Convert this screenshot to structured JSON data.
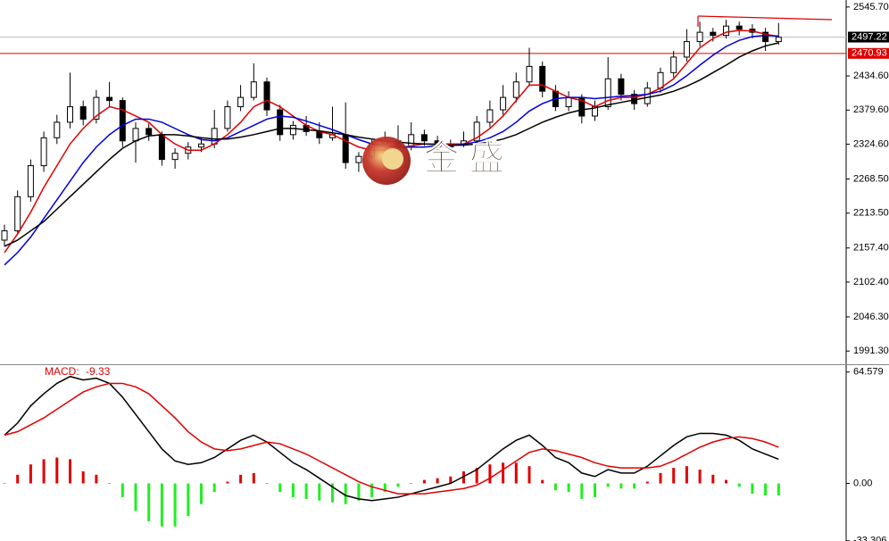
{
  "chart_data": [
    {
      "type": "candlestick",
      "ylim": [
        1970,
        2557
      ],
      "yticks": [
        {
          "value": 2545.7,
          "label": "2545.70"
        },
        {
          "value": 2434.6,
          "label": "2434.60"
        },
        {
          "value": 2379.6,
          "label": "2379.60"
        },
        {
          "value": 2324.6,
          "label": "2324.60"
        },
        {
          "value": 2268.5,
          "label": "2268.50"
        },
        {
          "value": 2213.5,
          "label": "2213.50"
        },
        {
          "value": 2157.4,
          "label": "2157.40"
        },
        {
          "value": 2102.4,
          "label": "2102.40"
        },
        {
          "value": 2046.3,
          "label": "2046.30"
        },
        {
          "value": 1991.3,
          "label": "1991.30"
        }
      ],
      "price_labels": [
        {
          "value": 2497.22,
          "color": "#000000",
          "line_color": "#c0c0c0"
        },
        {
          "value": 2470.93,
          "color": "#e00000",
          "line_color": "#e00000"
        }
      ],
      "ohlc": [
        [
          2170,
          2195,
          2160,
          2185
        ],
        [
          2185,
          2250,
          2180,
          2240
        ],
        [
          2240,
          2300,
          2232,
          2290
        ],
        [
          2290,
          2345,
          2280,
          2335
        ],
        [
          2335,
          2372,
          2325,
          2360
        ],
        [
          2360,
          2440,
          2350,
          2385
        ],
        [
          2385,
          2395,
          2355,
          2365
        ],
        [
          2365,
          2412,
          2358,
          2400
        ],
        [
          2400,
          2425,
          2385,
          2395
        ],
        [
          2395,
          2400,
          2320,
          2330
        ],
        [
          2330,
          2360,
          2295,
          2350
        ],
        [
          2350,
          2358,
          2330,
          2340
        ],
        [
          2340,
          2345,
          2290,
          2300
        ],
        [
          2300,
          2318,
          2285,
          2310
        ],
        [
          2310,
          2328,
          2300,
          2320
        ],
        [
          2320,
          2335,
          2312,
          2325
        ],
        [
          2325,
          2380,
          2318,
          2350
        ],
        [
          2350,
          2395,
          2345,
          2385
        ],
        [
          2385,
          2420,
          2378,
          2400
        ],
        [
          2400,
          2455,
          2395,
          2425
        ],
        [
          2425,
          2432,
          2370,
          2380
        ],
        [
          2380,
          2388,
          2330,
          2340
        ],
        [
          2340,
          2362,
          2332,
          2355
        ],
        [
          2355,
          2370,
          2338,
          2345
        ],
        [
          2345,
          2360,
          2325,
          2335
        ],
        [
          2335,
          2385,
          2330,
          2340
        ],
        [
          2340,
          2392,
          2285,
          2295
        ],
        [
          2295,
          2312,
          2280,
          2305
        ],
        [
          2305,
          2332,
          2300,
          2325
        ],
        [
          2325,
          2345,
          2318,
          2330
        ],
        [
          2330,
          2355,
          2312,
          2320
        ],
        [
          2320,
          2360,
          2315,
          2340
        ],
        [
          2340,
          2348,
          2322,
          2330
        ],
        [
          2330,
          2338,
          2312,
          2320
        ],
        [
          2320,
          2332,
          2315,
          2325
        ],
        [
          2325,
          2345,
          2320,
          2330
        ],
        [
          2330,
          2370,
          2325,
          2360
        ],
        [
          2360,
          2395,
          2352,
          2380
        ],
        [
          2380,
          2420,
          2372,
          2400
        ],
        [
          2400,
          2440,
          2392,
          2425
        ],
        [
          2425,
          2480,
          2418,
          2450
        ],
        [
          2450,
          2458,
          2400,
          2410
        ],
        [
          2410,
          2420,
          2378,
          2385
        ],
        [
          2385,
          2410,
          2378,
          2400
        ],
        [
          2400,
          2405,
          2358,
          2370
        ],
        [
          2370,
          2395,
          2362,
          2385
        ],
        [
          2385,
          2465,
          2380,
          2430
        ],
        [
          2430,
          2438,
          2395,
          2405
        ],
        [
          2405,
          2412,
          2380,
          2390
        ],
        [
          2390,
          2425,
          2385,
          2415
        ],
        [
          2415,
          2448,
          2408,
          2440
        ],
        [
          2440,
          2475,
          2432,
          2465
        ],
        [
          2465,
          2510,
          2458,
          2490
        ],
        [
          2490,
          2522,
          2482,
          2505
        ],
        [
          2505,
          2512,
          2490,
          2500
        ],
        [
          2500,
          2525,
          2495,
          2515
        ],
        [
          2515,
          2522,
          2500,
          2510
        ],
        [
          2510,
          2518,
          2495,
          2505
        ],
        [
          2505,
          2512,
          2475,
          2490
        ],
        [
          2490,
          2520,
          2485,
          2497
        ]
      ],
      "series": [
        {
          "color": "#e00000",
          "values": [
            2150,
            2180,
            2215,
            2255,
            2290,
            2325,
            2350,
            2370,
            2385,
            2380,
            2370,
            2360,
            2340,
            2325,
            2315,
            2315,
            2325,
            2340,
            2360,
            2385,
            2395,
            2385,
            2370,
            2355,
            2345,
            2340,
            2330,
            2320,
            2315,
            2315,
            2318,
            2322,
            2325,
            2325,
            2325,
            2325,
            2335,
            2350,
            2370,
            2395,
            2420,
            2420,
            2410,
            2400,
            2395,
            2385,
            2395,
            2400,
            2400,
            2405,
            2415,
            2430,
            2455,
            2480,
            2495,
            2505,
            2508,
            2507,
            2502,
            2498
          ]
        },
        {
          "color": "#0000dd",
          "values": [
            2130,
            2150,
            2175,
            2205,
            2235,
            2265,
            2295,
            2320,
            2340,
            2355,
            2365,
            2365,
            2360,
            2350,
            2340,
            2332,
            2330,
            2335,
            2345,
            2355,
            2365,
            2370,
            2368,
            2362,
            2355,
            2348,
            2340,
            2332,
            2325,
            2322,
            2320,
            2320,
            2320,
            2322,
            2322,
            2325,
            2328,
            2335,
            2345,
            2360,
            2378,
            2390,
            2398,
            2400,
            2400,
            2398,
            2400,
            2402,
            2403,
            2405,
            2410,
            2420,
            2435,
            2452,
            2468,
            2482,
            2492,
            2498,
            2500,
            2499
          ]
        },
        {
          "color": "#000000",
          "values": [
            2160,
            2170,
            2185,
            2200,
            2220,
            2240,
            2260,
            2280,
            2300,
            2318,
            2330,
            2338,
            2340,
            2340,
            2338,
            2335,
            2333,
            2333,
            2336,
            2340,
            2345,
            2350,
            2350,
            2348,
            2346,
            2343,
            2340,
            2336,
            2333,
            2330,
            2328,
            2326,
            2325,
            2324,
            2323,
            2323,
            2325,
            2328,
            2333,
            2340,
            2350,
            2360,
            2368,
            2375,
            2380,
            2383,
            2388,
            2392,
            2396,
            2400,
            2404,
            2410,
            2418,
            2428,
            2440,
            2452,
            2465,
            2475,
            2483,
            2488
          ]
        }
      ],
      "watermark": "金 盛"
    },
    {
      "type": "macd",
      "indicator_label": "MACD:",
      "indicator_value": -9.33,
      "ylim": [
        -33.4,
        69.1
      ],
      "yticks": [
        64.579,
        {
          "value": 0,
          "label": "0.00"
        },
        -33.306
      ],
      "histogram": [
        0,
        5,
        11,
        14,
        15,
        14,
        7,
        5,
        0,
        -8,
        -16,
        -22,
        -25,
        -25,
        -19,
        -12,
        -5,
        1,
        5,
        6,
        0,
        -5,
        -8,
        -9,
        -10,
        -11,
        -12,
        -10,
        -8,
        -5,
        -2,
        0,
        2,
        3,
        4,
        7,
        9,
        11,
        12,
        12,
        10,
        2,
        -4,
        -5,
        -9,
        -8,
        -2,
        -3,
        -3,
        1,
        6,
        9,
        10,
        8,
        5,
        2,
        -2,
        -6,
        -7,
        -7
      ],
      "positive_color": "#e00000",
      "negative_color": "#22ee22",
      "series": [
        {
          "color": "#000000",
          "values": [
            28,
            35,
            45,
            52,
            58,
            62,
            60,
            61,
            58,
            50,
            40,
            30,
            20,
            13,
            11,
            12,
            15,
            20,
            25,
            28,
            24,
            18,
            12,
            8,
            3,
            -2,
            -7,
            -9,
            -10,
            -9,
            -8,
            -6,
            -4,
            -2,
            0,
            4,
            8,
            14,
            20,
            25,
            28,
            22,
            15,
            12,
            6,
            4,
            8,
            6,
            6,
            10,
            16,
            22,
            27,
            29,
            29,
            28,
            25,
            20,
            17,
            14
          ]
        },
        {
          "color": "#e00000",
          "values": [
            28,
            30,
            34,
            38,
            43,
            48,
            53,
            56,
            58,
            58,
            56,
            52,
            45,
            38,
            30,
            24,
            20,
            19,
            20,
            22,
            24,
            23,
            20,
            17,
            13,
            9,
            5,
            1,
            -2,
            -4,
            -6,
            -6,
            -6,
            -5,
            -4,
            -3,
            -1,
            3,
            8,
            13,
            18,
            20,
            19,
            17,
            15,
            12,
            10,
            9,
            9,
            9,
            10,
            13,
            17,
            21,
            24,
            26,
            27,
            26,
            24,
            21
          ]
        }
      ]
    }
  ]
}
